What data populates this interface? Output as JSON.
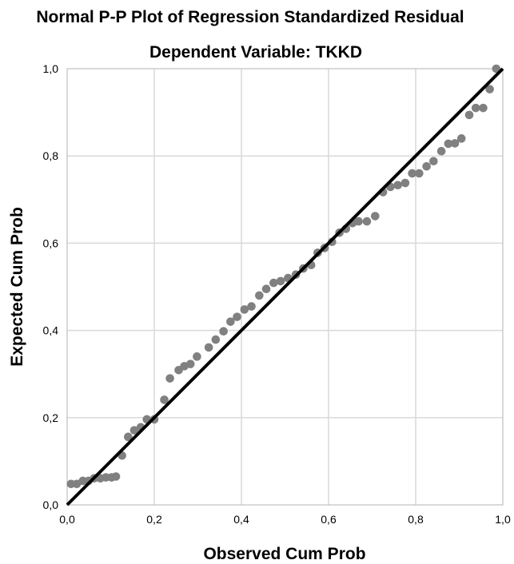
{
  "chart_data": {
    "type": "scatter",
    "title": "Normal P-P Plot of Regression Standardized Residual",
    "subtitle": "Dependent Variable: TKKD",
    "xlabel": "Observed Cum Prob",
    "ylabel": "Expected Cum Prob",
    "xlim": [
      0,
      1
    ],
    "ylim": [
      0,
      1
    ],
    "x_ticks": [
      "0,0",
      "0,2",
      "0,4",
      "0,6",
      "0,8",
      "1,0"
    ],
    "y_ticks": [
      "0,0",
      "0,2",
      "0,4",
      "0,6",
      "0,8",
      "1,0"
    ],
    "grid": true,
    "reference_line": {
      "from": [
        0,
        0
      ],
      "to": [
        1,
        1
      ]
    },
    "colors": {
      "points": "#808080",
      "line": "#000000",
      "grid": "#d9d9d9",
      "frame": "#b3b3b3"
    },
    "points": [
      [
        0.009,
        0.048
      ],
      [
        0.022,
        0.048
      ],
      [
        0.036,
        0.055
      ],
      [
        0.049,
        0.055
      ],
      [
        0.062,
        0.061
      ],
      [
        0.076,
        0.061
      ],
      [
        0.089,
        0.063
      ],
      [
        0.102,
        0.063
      ],
      [
        0.112,
        0.065
      ],
      [
        0.126,
        0.113
      ],
      [
        0.14,
        0.156
      ],
      [
        0.154,
        0.171
      ],
      [
        0.169,
        0.178
      ],
      [
        0.183,
        0.196
      ],
      [
        0.2,
        0.196
      ],
      [
        0.223,
        0.241
      ],
      [
        0.236,
        0.29
      ],
      [
        0.256,
        0.309
      ],
      [
        0.269,
        0.318
      ],
      [
        0.283,
        0.323
      ],
      [
        0.298,
        0.34
      ],
      [
        0.325,
        0.361
      ],
      [
        0.341,
        0.379
      ],
      [
        0.359,
        0.398
      ],
      [
        0.375,
        0.42
      ],
      [
        0.39,
        0.431
      ],
      [
        0.407,
        0.448
      ],
      [
        0.423,
        0.455
      ],
      [
        0.441,
        0.48
      ],
      [
        0.457,
        0.495
      ],
      [
        0.474,
        0.509
      ],
      [
        0.49,
        0.513
      ],
      [
        0.507,
        0.52
      ],
      [
        0.525,
        0.528
      ],
      [
        0.542,
        0.542
      ],
      [
        0.56,
        0.55
      ],
      [
        0.575,
        0.578
      ],
      [
        0.591,
        0.589
      ],
      [
        0.608,
        0.603
      ],
      [
        0.625,
        0.624
      ],
      [
        0.64,
        0.633
      ],
      [
        0.655,
        0.646
      ],
      [
        0.669,
        0.65
      ],
      [
        0.688,
        0.65
      ],
      [
        0.707,
        0.662
      ],
      [
        0.725,
        0.717
      ],
      [
        0.742,
        0.729
      ],
      [
        0.759,
        0.733
      ],
      [
        0.776,
        0.738
      ],
      [
        0.792,
        0.76
      ],
      [
        0.808,
        0.76
      ],
      [
        0.825,
        0.776
      ],
      [
        0.841,
        0.788
      ],
      [
        0.859,
        0.811
      ],
      [
        0.875,
        0.828
      ],
      [
        0.89,
        0.829
      ],
      [
        0.905,
        0.84
      ],
      [
        0.923,
        0.894
      ],
      [
        0.938,
        0.91
      ],
      [
        0.955,
        0.91
      ],
      [
        0.97,
        0.953
      ],
      [
        0.985,
        1.0
      ]
    ]
  }
}
